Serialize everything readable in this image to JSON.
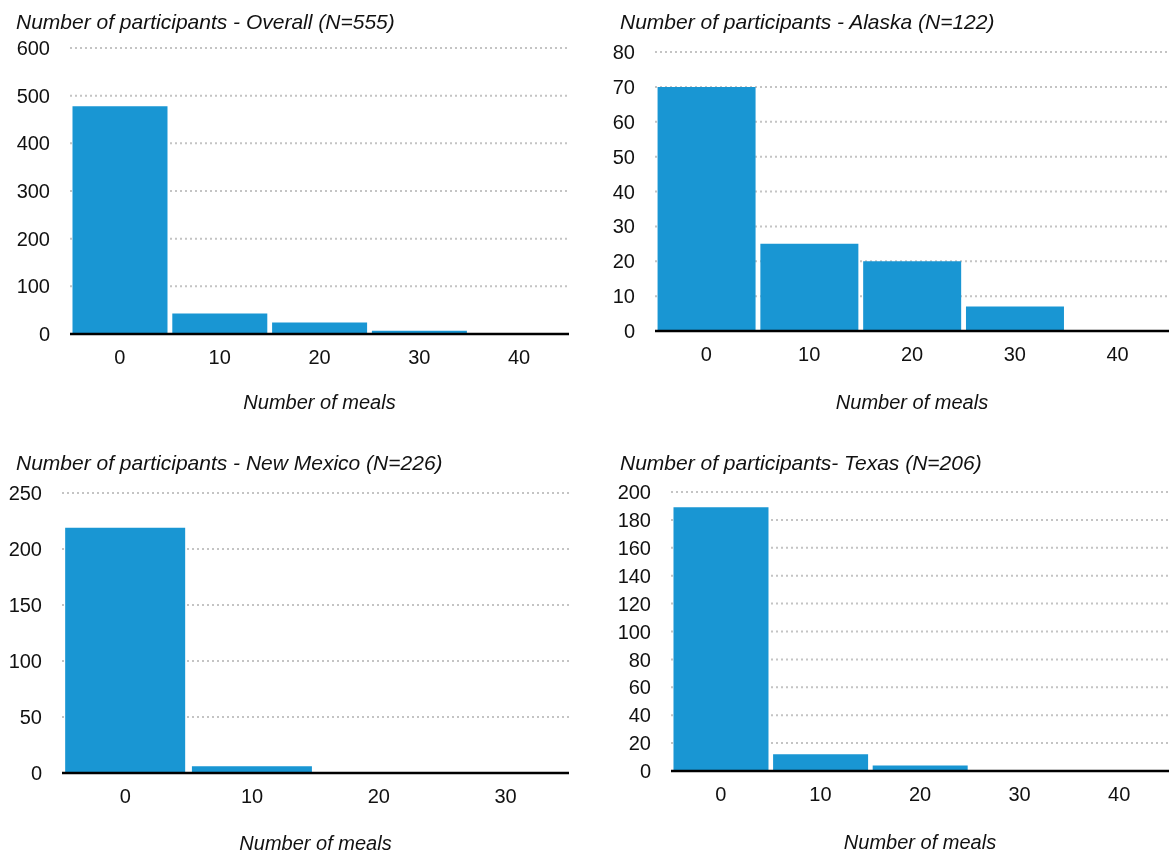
{
  "chart_data": [
    {
      "type": "histogram",
      "title": "Number of participants - Overall (N=555)",
      "xlabel": "Number of meals",
      "bins": [
        -5,
        5,
        15,
        25,
        35,
        45
      ],
      "values": [
        478,
        43,
        24,
        7,
        0
      ],
      "color": "#1996d3",
      "xlim": [
        -5,
        45
      ],
      "xticks": [
        0,
        10,
        20,
        30,
        40
      ],
      "ylim": [
        0,
        600
      ],
      "yticks": [
        0,
        100,
        200,
        300,
        400,
        500,
        600
      ],
      "grid": "y"
    },
    {
      "type": "histogram",
      "title": "Number of participants - Alaska (N=122)",
      "xlabel": "Number of meals",
      "bins": [
        -5,
        5,
        15,
        25,
        35,
        45
      ],
      "values": [
        70,
        25,
        20,
        7,
        0
      ],
      "color": "#1996d3",
      "xlim": [
        -5,
        45
      ],
      "xticks": [
        0,
        10,
        20,
        30,
        40
      ],
      "ylim": [
        0,
        80
      ],
      "yticks": [
        0,
        10,
        20,
        30,
        40,
        50,
        60,
        70,
        80
      ],
      "grid": "y"
    },
    {
      "type": "histogram",
      "title": "Number of participants - New Mexico (N=226)",
      "xlabel": "Number of meals",
      "bins": [
        -5,
        5,
        15,
        25,
        35
      ],
      "values": [
        219,
        6,
        0,
        0
      ],
      "color": "#1996d3",
      "xlim": [
        -5,
        35
      ],
      "xticks": [
        0,
        10,
        20,
        30
      ],
      "ylim": [
        0,
        250
      ],
      "yticks": [
        0,
        50,
        100,
        150,
        200,
        250
      ],
      "grid": "y"
    },
    {
      "type": "histogram",
      "title": "Number of participants- Texas (N=206)",
      "xlabel": "Number of meals",
      "bins": [
        -5,
        5,
        15,
        25,
        35,
        45
      ],
      "values": [
        189,
        12,
        4,
        0,
        0
      ],
      "color": "#1996d3",
      "xlim": [
        -5,
        45
      ],
      "xticks": [
        0,
        10,
        20,
        30,
        40
      ],
      "ylim": [
        0,
        200
      ],
      "yticks": [
        0,
        20,
        40,
        60,
        80,
        100,
        120,
        140,
        160,
        180,
        200
      ],
      "grid": "y"
    }
  ]
}
